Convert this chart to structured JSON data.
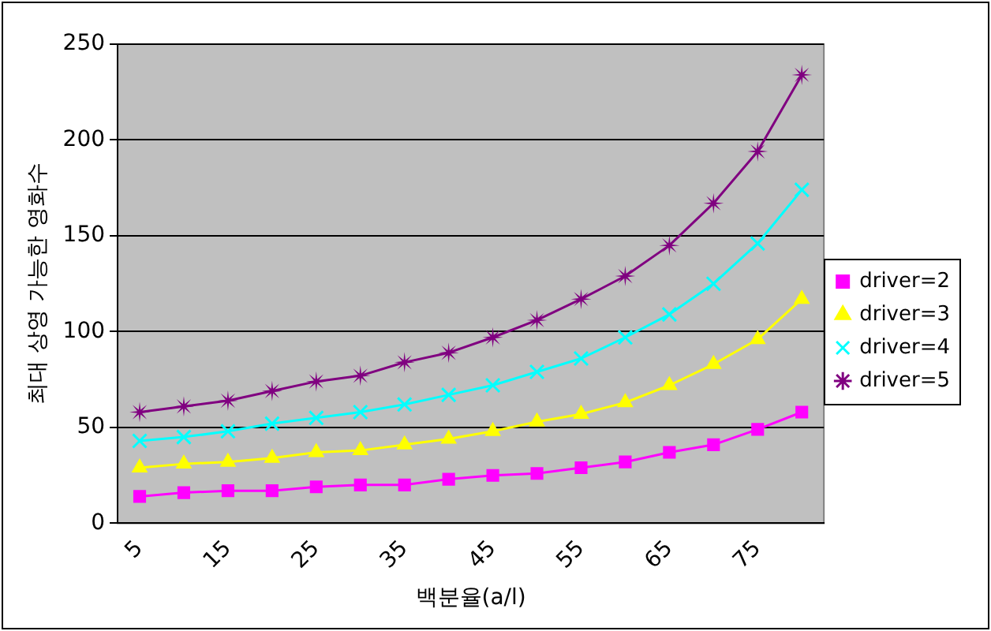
{
  "chart_data": {
    "type": "line",
    "xlabel": "백분율(a/l)",
    "ylabel": "최대 상영 가능한 영화수",
    "categories": [
      "5",
      null,
      "15",
      null,
      "25",
      null,
      "35",
      null,
      "45",
      null,
      "55",
      null,
      "65",
      null,
      "75",
      null
    ],
    "series": [
      {
        "name": "driver=2",
        "color": "#ff00ff",
        "marker": "square",
        "values": [
          14,
          16,
          17,
          17,
          19,
          20,
          20,
          23,
          25,
          26,
          29,
          32,
          37,
          41,
          49,
          58
        ]
      },
      {
        "name": "driver=3",
        "color": "#ffff00",
        "marker": "triangle",
        "values": [
          29,
          31,
          32,
          34,
          37,
          38,
          41,
          44,
          48,
          53,
          57,
          63,
          72,
          83,
          96,
          117
        ]
      },
      {
        "name": "driver=4",
        "color": "#00ffff",
        "marker": "cross",
        "values": [
          43,
          45,
          48,
          52,
          55,
          58,
          62,
          67,
          72,
          79,
          86,
          97,
          109,
          125,
          146,
          174
        ]
      },
      {
        "name": "driver=5",
        "color": "#800080",
        "marker": "star",
        "values": [
          58,
          61,
          64,
          69,
          74,
          77,
          84,
          89,
          97,
          106,
          117,
          129,
          145,
          167,
          194,
          234
        ]
      }
    ],
    "ylim": [
      0,
      250
    ],
    "yticks": [
      0,
      50,
      100,
      150,
      200,
      250
    ],
    "grid": "y",
    "legend": "right"
  }
}
